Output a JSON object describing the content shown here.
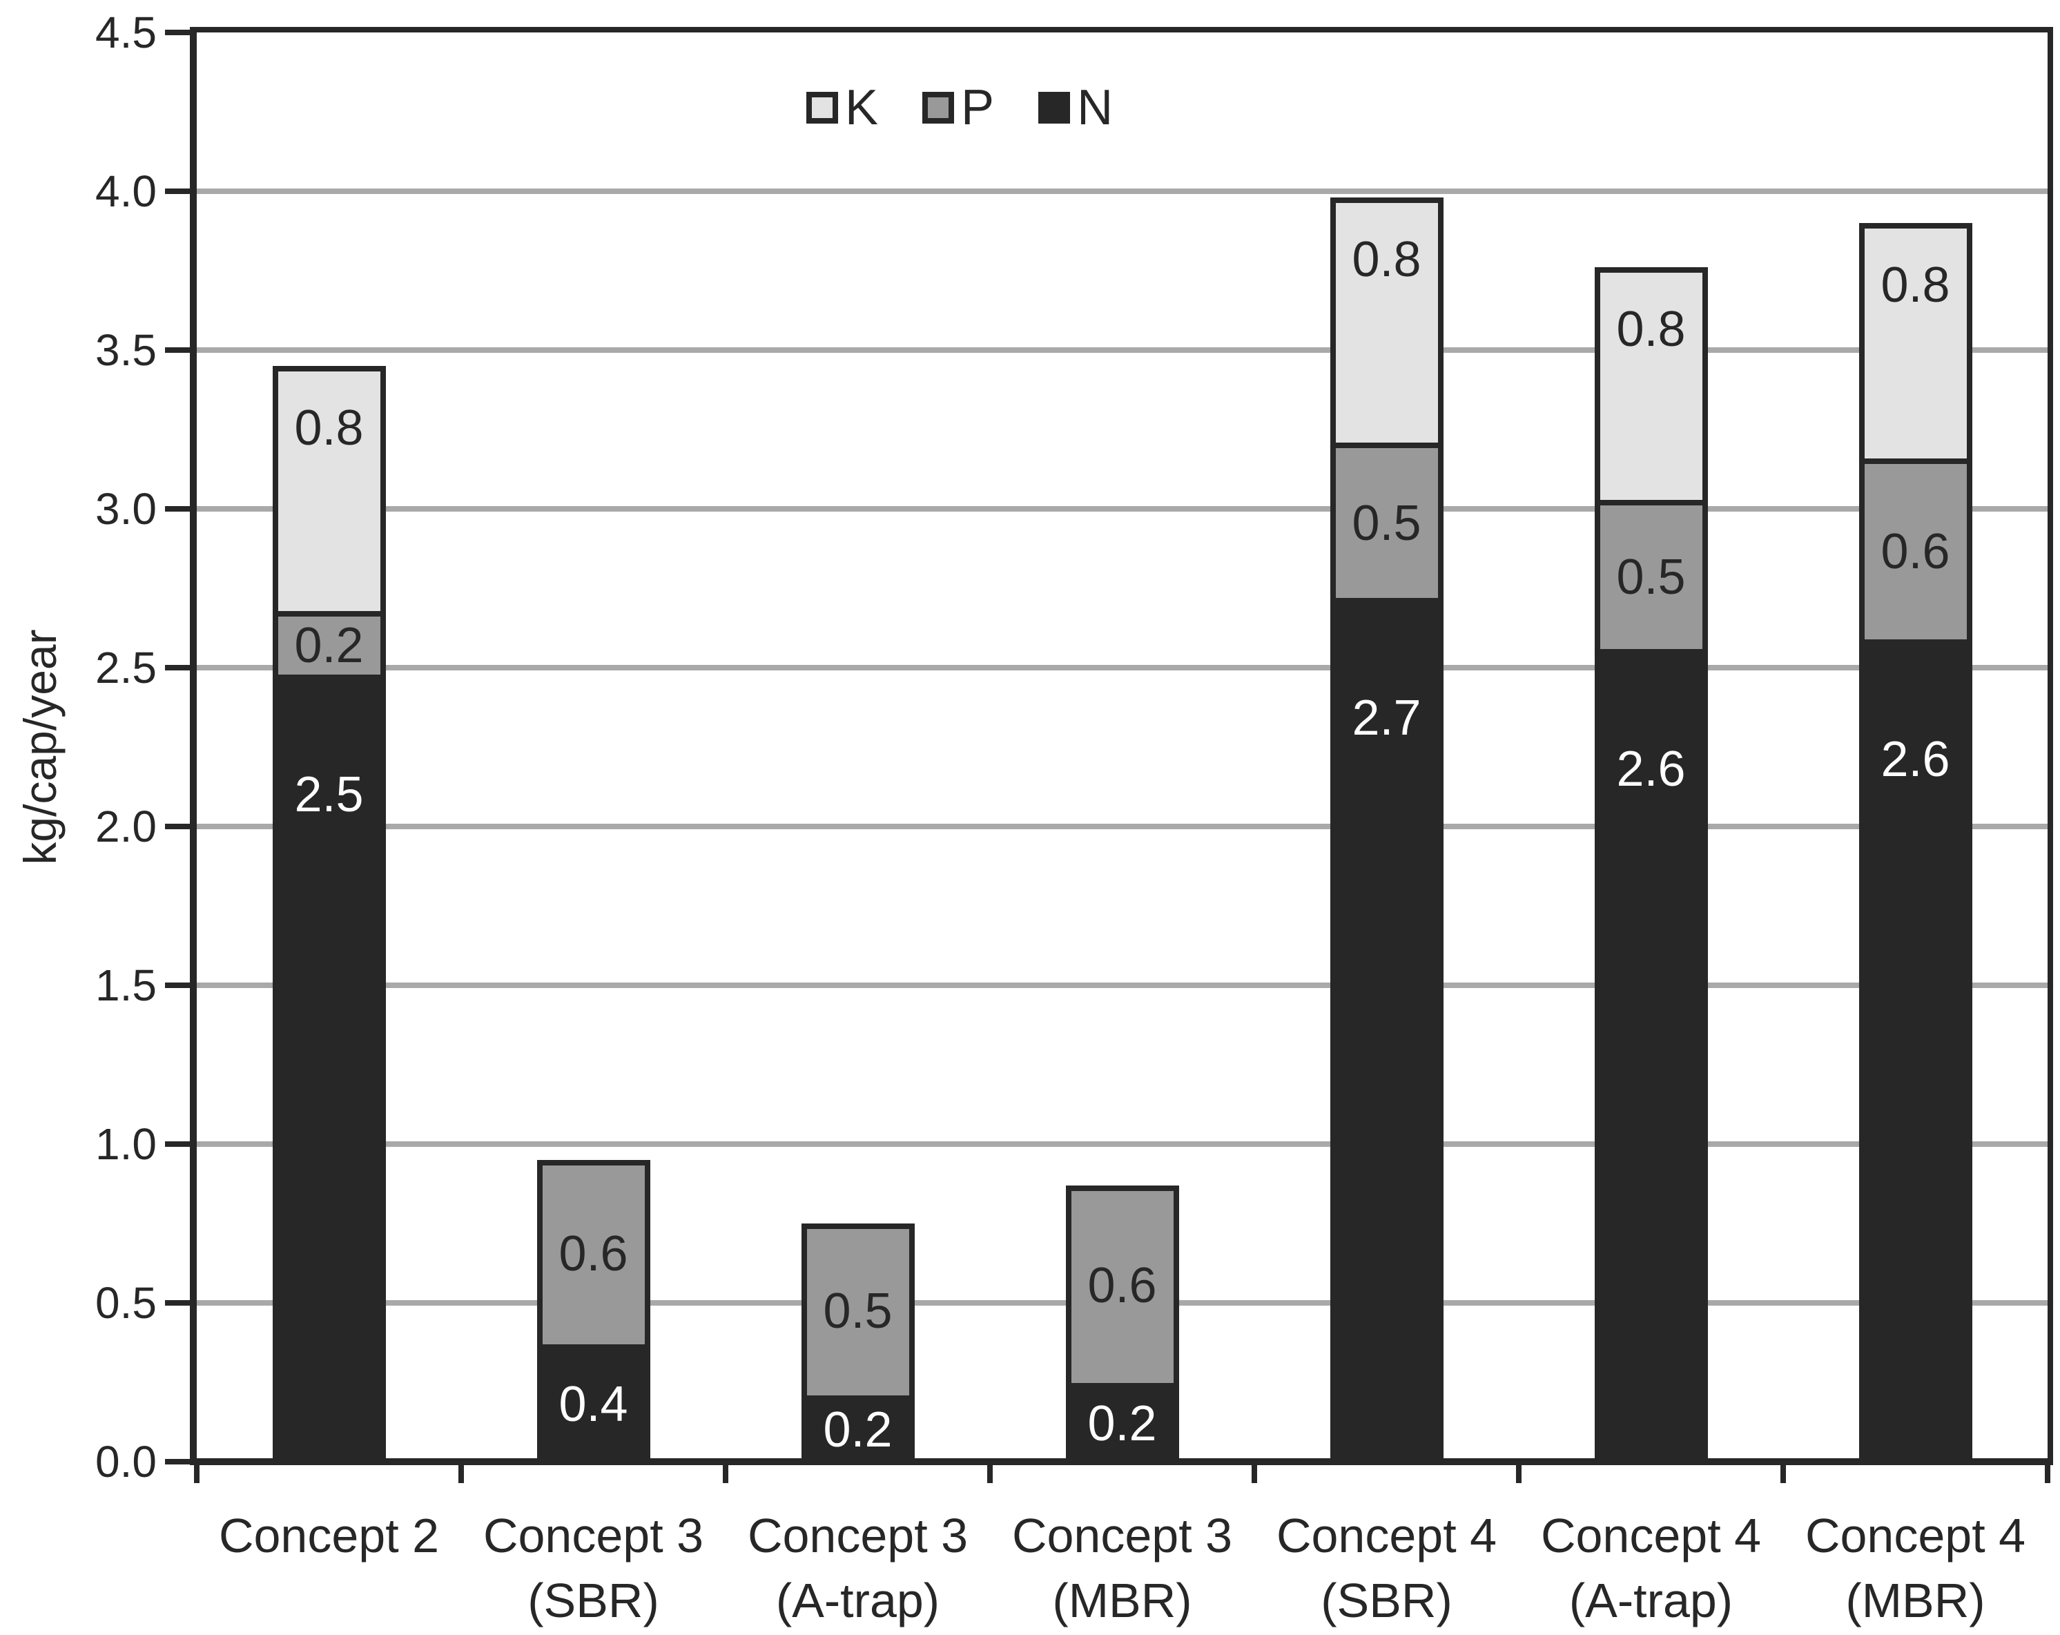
{
  "chart_data": {
    "type": "bar",
    "stacked": true,
    "title": "",
    "xlabel": "",
    "ylabel": "kg/cap/year",
    "ylim": [
      0,
      4.5
    ],
    "grid": true,
    "grid_interval": 0.5,
    "yticks": [
      "0.0",
      "0.5",
      "1.0",
      "1.5",
      "2.0",
      "2.5",
      "3.0",
      "3.5",
      "4.0",
      "4.5"
    ],
    "legend_position": "top-center",
    "legend_order": [
      "K",
      "P",
      "N"
    ],
    "series_colors": {
      "K": "#e3e3e3",
      "P": "#999999",
      "N": "#272727"
    },
    "value_label_colors": {
      "K": "#272727",
      "P": "#272727",
      "N": "#ffffff"
    },
    "grid_color": "#a9a9a9",
    "frame_color": "#272727",
    "categories": [
      {
        "label_line1": "Concept 2",
        "label_line2": ""
      },
      {
        "label_line1": "Concept 3",
        "label_line2": "(SBR)"
      },
      {
        "label_line1": "Concept 3",
        "label_line2": "(A-trap)"
      },
      {
        "label_line1": "Concept 3",
        "label_line2": "(MBR)"
      },
      {
        "label_line1": "Concept 4",
        "label_line2": "(SBR)"
      },
      {
        "label_line1": "Concept 4",
        "label_line2": "(A-trap)"
      },
      {
        "label_line1": "Concept 4",
        "label_line2": "(MBR)"
      }
    ],
    "bars": [
      {
        "category": "Concept 2",
        "segments": [
          {
            "series": "N",
            "value": 2.5,
            "label": "2.5",
            "draw_height": 2.47
          },
          {
            "series": "P",
            "value": 0.2,
            "label": "0.2",
            "draw_height": 0.2
          },
          {
            "series": "K",
            "value": 0.8,
            "label": "0.8",
            "draw_height": 0.78
          }
        ]
      },
      {
        "category": "Concept 3 (SBR)",
        "segments": [
          {
            "series": "N",
            "value": 0.4,
            "label": "0.4",
            "draw_height": 0.36
          },
          {
            "series": "P",
            "value": 0.6,
            "label": "0.6",
            "draw_height": 0.59
          }
        ]
      },
      {
        "category": "Concept 3 (A-trap)",
        "segments": [
          {
            "series": "N",
            "value": 0.2,
            "label": "0.2",
            "draw_height": 0.2
          },
          {
            "series": "P",
            "value": 0.5,
            "label": "0.5",
            "draw_height": 0.55
          }
        ]
      },
      {
        "category": "Concept 3 (MBR)",
        "segments": [
          {
            "series": "N",
            "value": 0.2,
            "label": "0.2",
            "draw_height": 0.24
          },
          {
            "series": "P",
            "value": 0.6,
            "label": "0.6",
            "draw_height": 0.63
          }
        ]
      },
      {
        "category": "Concept 4 (SBR)",
        "segments": [
          {
            "series": "N",
            "value": 2.7,
            "label": "2.7",
            "draw_height": 2.71
          },
          {
            "series": "P",
            "value": 0.5,
            "label": "0.5",
            "draw_height": 0.49
          },
          {
            "series": "K",
            "value": 0.8,
            "label": "0.8",
            "draw_height": 0.78
          }
        ]
      },
      {
        "category": "Concept 4 (A-trap)",
        "segments": [
          {
            "series": "N",
            "value": 2.6,
            "label": "2.6",
            "draw_height": 2.55
          },
          {
            "series": "P",
            "value": 0.5,
            "label": "0.5",
            "draw_height": 0.47
          },
          {
            "series": "K",
            "value": 0.8,
            "label": "0.8",
            "draw_height": 0.74
          }
        ]
      },
      {
        "category": "Concept 4 (MBR)",
        "segments": [
          {
            "series": "N",
            "value": 2.6,
            "label": "2.6",
            "draw_height": 2.58
          },
          {
            "series": "P",
            "value": 0.6,
            "label": "0.6",
            "draw_height": 0.57
          },
          {
            "series": "K",
            "value": 0.8,
            "label": "0.8",
            "draw_height": 0.75
          }
        ]
      }
    ]
  }
}
